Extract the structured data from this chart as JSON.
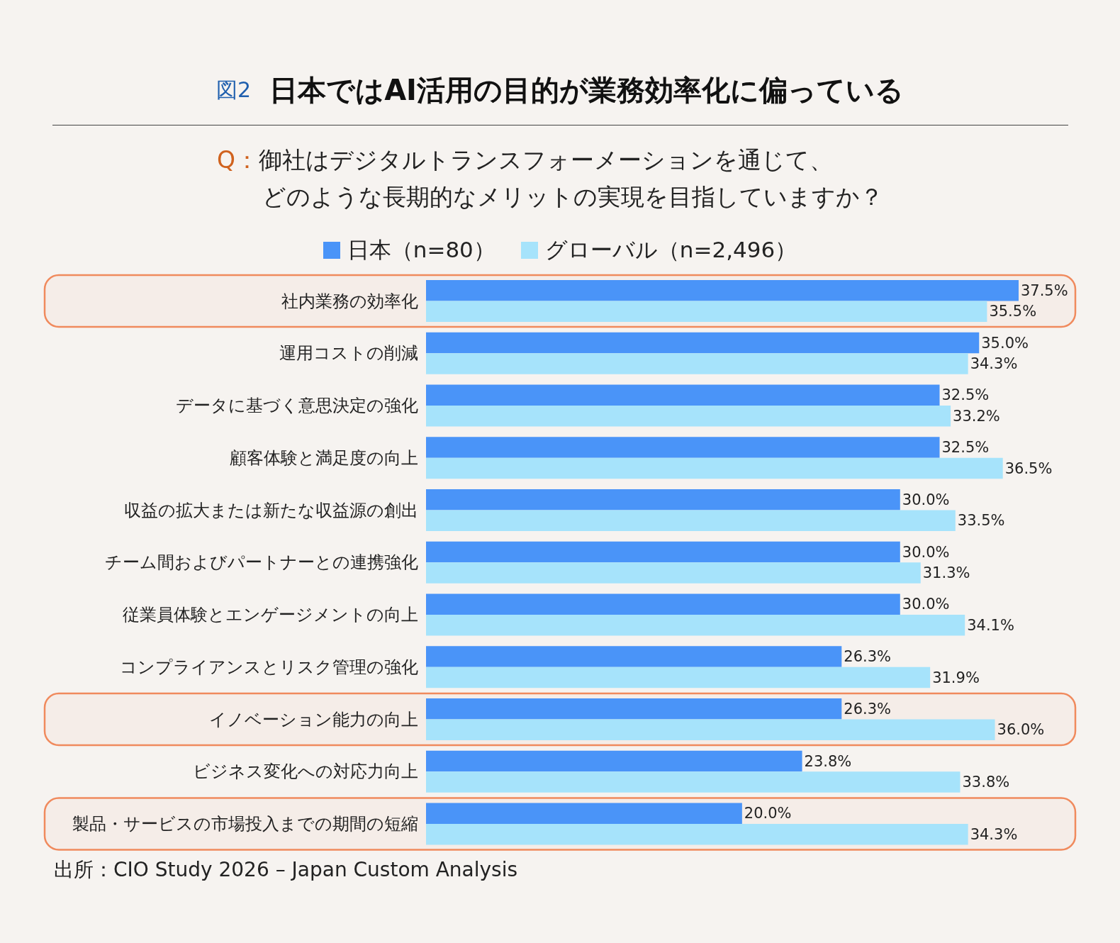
{
  "chart_data": {
    "type": "bar",
    "orientation": "horizontal",
    "title": "日本ではAI活用の目的が業務効率化に偏っている",
    "subtitle": "Q：御社はデジタルトランスフォーメーションを通じて、どのような長期的なメリットの実現を目指していますか？",
    "annotations": [
      "図2",
      "出所：CIO Study 2026 – Japan Custom Analysis"
    ],
    "categories": [
      "社内業務の効率化",
      "運用コストの削減",
      "データに基づく意思決定の強化",
      "顧客体験と満足度の向上",
      "収益の拡大または新たな収益源の創出",
      "チーム間およびパートナーとの連携強化",
      "従業員体験とエンゲージメントの向上",
      "コンプライアンスとリスク管理の強化",
      "イノベーション能力の向上",
      "ビジネス変化への対応力向上",
      "製品・サービスの市場投入までの期間の短縮"
    ],
    "series": [
      {
        "name": "日本（n=80）",
        "color": "#4a94f8",
        "values": [
          37.5,
          35.0,
          32.5,
          32.5,
          30.0,
          30.0,
          30.0,
          26.3,
          26.3,
          23.8,
          20.0
        ],
        "value_labels": [
          "37.5%",
          "35.0%",
          "32.5%",
          "32.5%",
          "30.0%",
          "30.0%",
          "30.0%",
          "26.3%",
          "26.3%",
          "23.8%",
          "20.0%"
        ]
      },
      {
        "name": "グローバル（n=2,496）",
        "color": "#a6e3fb",
        "values": [
          35.5,
          34.3,
          33.2,
          36.5,
          33.5,
          31.3,
          34.1,
          31.9,
          36.0,
          33.8,
          34.3
        ],
        "value_labels": [
          "35.5%",
          "34.3%",
          "33.2%",
          "36.5%",
          "33.5%",
          "31.3%",
          "34.1%",
          "31.9%",
          "36.0%",
          "33.8%",
          "34.3%"
        ]
      }
    ],
    "bands": [
      {
        "axis": "y",
        "from": "社内業務の効率化",
        "to": "社内業務の効率化",
        "color": "#f08a5d"
      },
      {
        "axis": "y",
        "from": "イノベーション能力の向上",
        "to": "イノベーション能力の向上",
        "color": "#f08a5d"
      },
      {
        "axis": "y",
        "from": "製品・サービスの市場投入までの期間の短縮",
        "to": "製品・サービスの市場投入までの期間の短縮",
        "color": "#f08a5d"
      }
    ],
    "legend": "top"
  }
}
